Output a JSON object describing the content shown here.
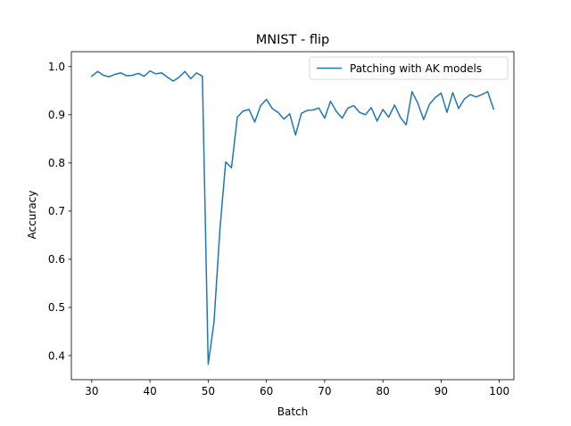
{
  "chart_data": {
    "type": "line",
    "title": "MNIST - flip",
    "xlabel": "Batch",
    "ylabel": "Accuracy",
    "xlim": [
      26.5,
      102.5
    ],
    "ylim": [
      0.35,
      1.031
    ],
    "xticks": [
      30,
      40,
      50,
      60,
      70,
      80,
      90,
      100
    ],
    "yticks": [
      0.4,
      0.5,
      0.6,
      0.7,
      0.8,
      0.9,
      1.0
    ],
    "xtick_labels": [
      "30",
      "40",
      "50",
      "60",
      "70",
      "80",
      "90",
      "100"
    ],
    "ytick_labels": [
      "0.4",
      "0.5",
      "0.6",
      "0.7",
      "0.8",
      "0.9",
      "1.0"
    ],
    "grid": false,
    "legend_position": "top-right",
    "series": [
      {
        "name": "Patching with AK models",
        "color": "#1f77b4",
        "x": [
          30,
          31,
          32,
          33,
          34,
          35,
          36,
          37,
          38,
          39,
          40,
          41,
          42,
          43,
          44,
          45,
          46,
          47,
          48,
          49,
          50,
          51,
          52,
          53,
          54,
          55,
          56,
          57,
          58,
          59,
          60,
          61,
          62,
          63,
          64,
          65,
          66,
          67,
          68,
          69,
          70,
          71,
          72,
          73,
          74,
          75,
          76,
          77,
          78,
          79,
          80,
          81,
          82,
          83,
          84,
          85,
          86,
          87,
          88,
          89,
          90,
          91,
          92,
          93,
          94,
          95,
          96,
          97,
          98,
          99
        ],
        "values": [
          0.98,
          0.99,
          0.982,
          0.979,
          0.984,
          0.987,
          0.981,
          0.982,
          0.986,
          0.98,
          0.991,
          0.985,
          0.987,
          0.978,
          0.97,
          0.978,
          0.99,
          0.975,
          0.987,
          0.98,
          0.382,
          0.47,
          0.66,
          0.802,
          0.79,
          0.895,
          0.908,
          0.911,
          0.885,
          0.919,
          0.932,
          0.913,
          0.905,
          0.891,
          0.902,
          0.858,
          0.903,
          0.909,
          0.91,
          0.914,
          0.893,
          0.928,
          0.907,
          0.893,
          0.914,
          0.919,
          0.905,
          0.9,
          0.915,
          0.887,
          0.911,
          0.895,
          0.92,
          0.895,
          0.879,
          0.948,
          0.924,
          0.89,
          0.922,
          0.936,
          0.945,
          0.905,
          0.946,
          0.913,
          0.933,
          0.942,
          0.937,
          0.942,
          0.948,
          0.912
        ]
      }
    ]
  }
}
